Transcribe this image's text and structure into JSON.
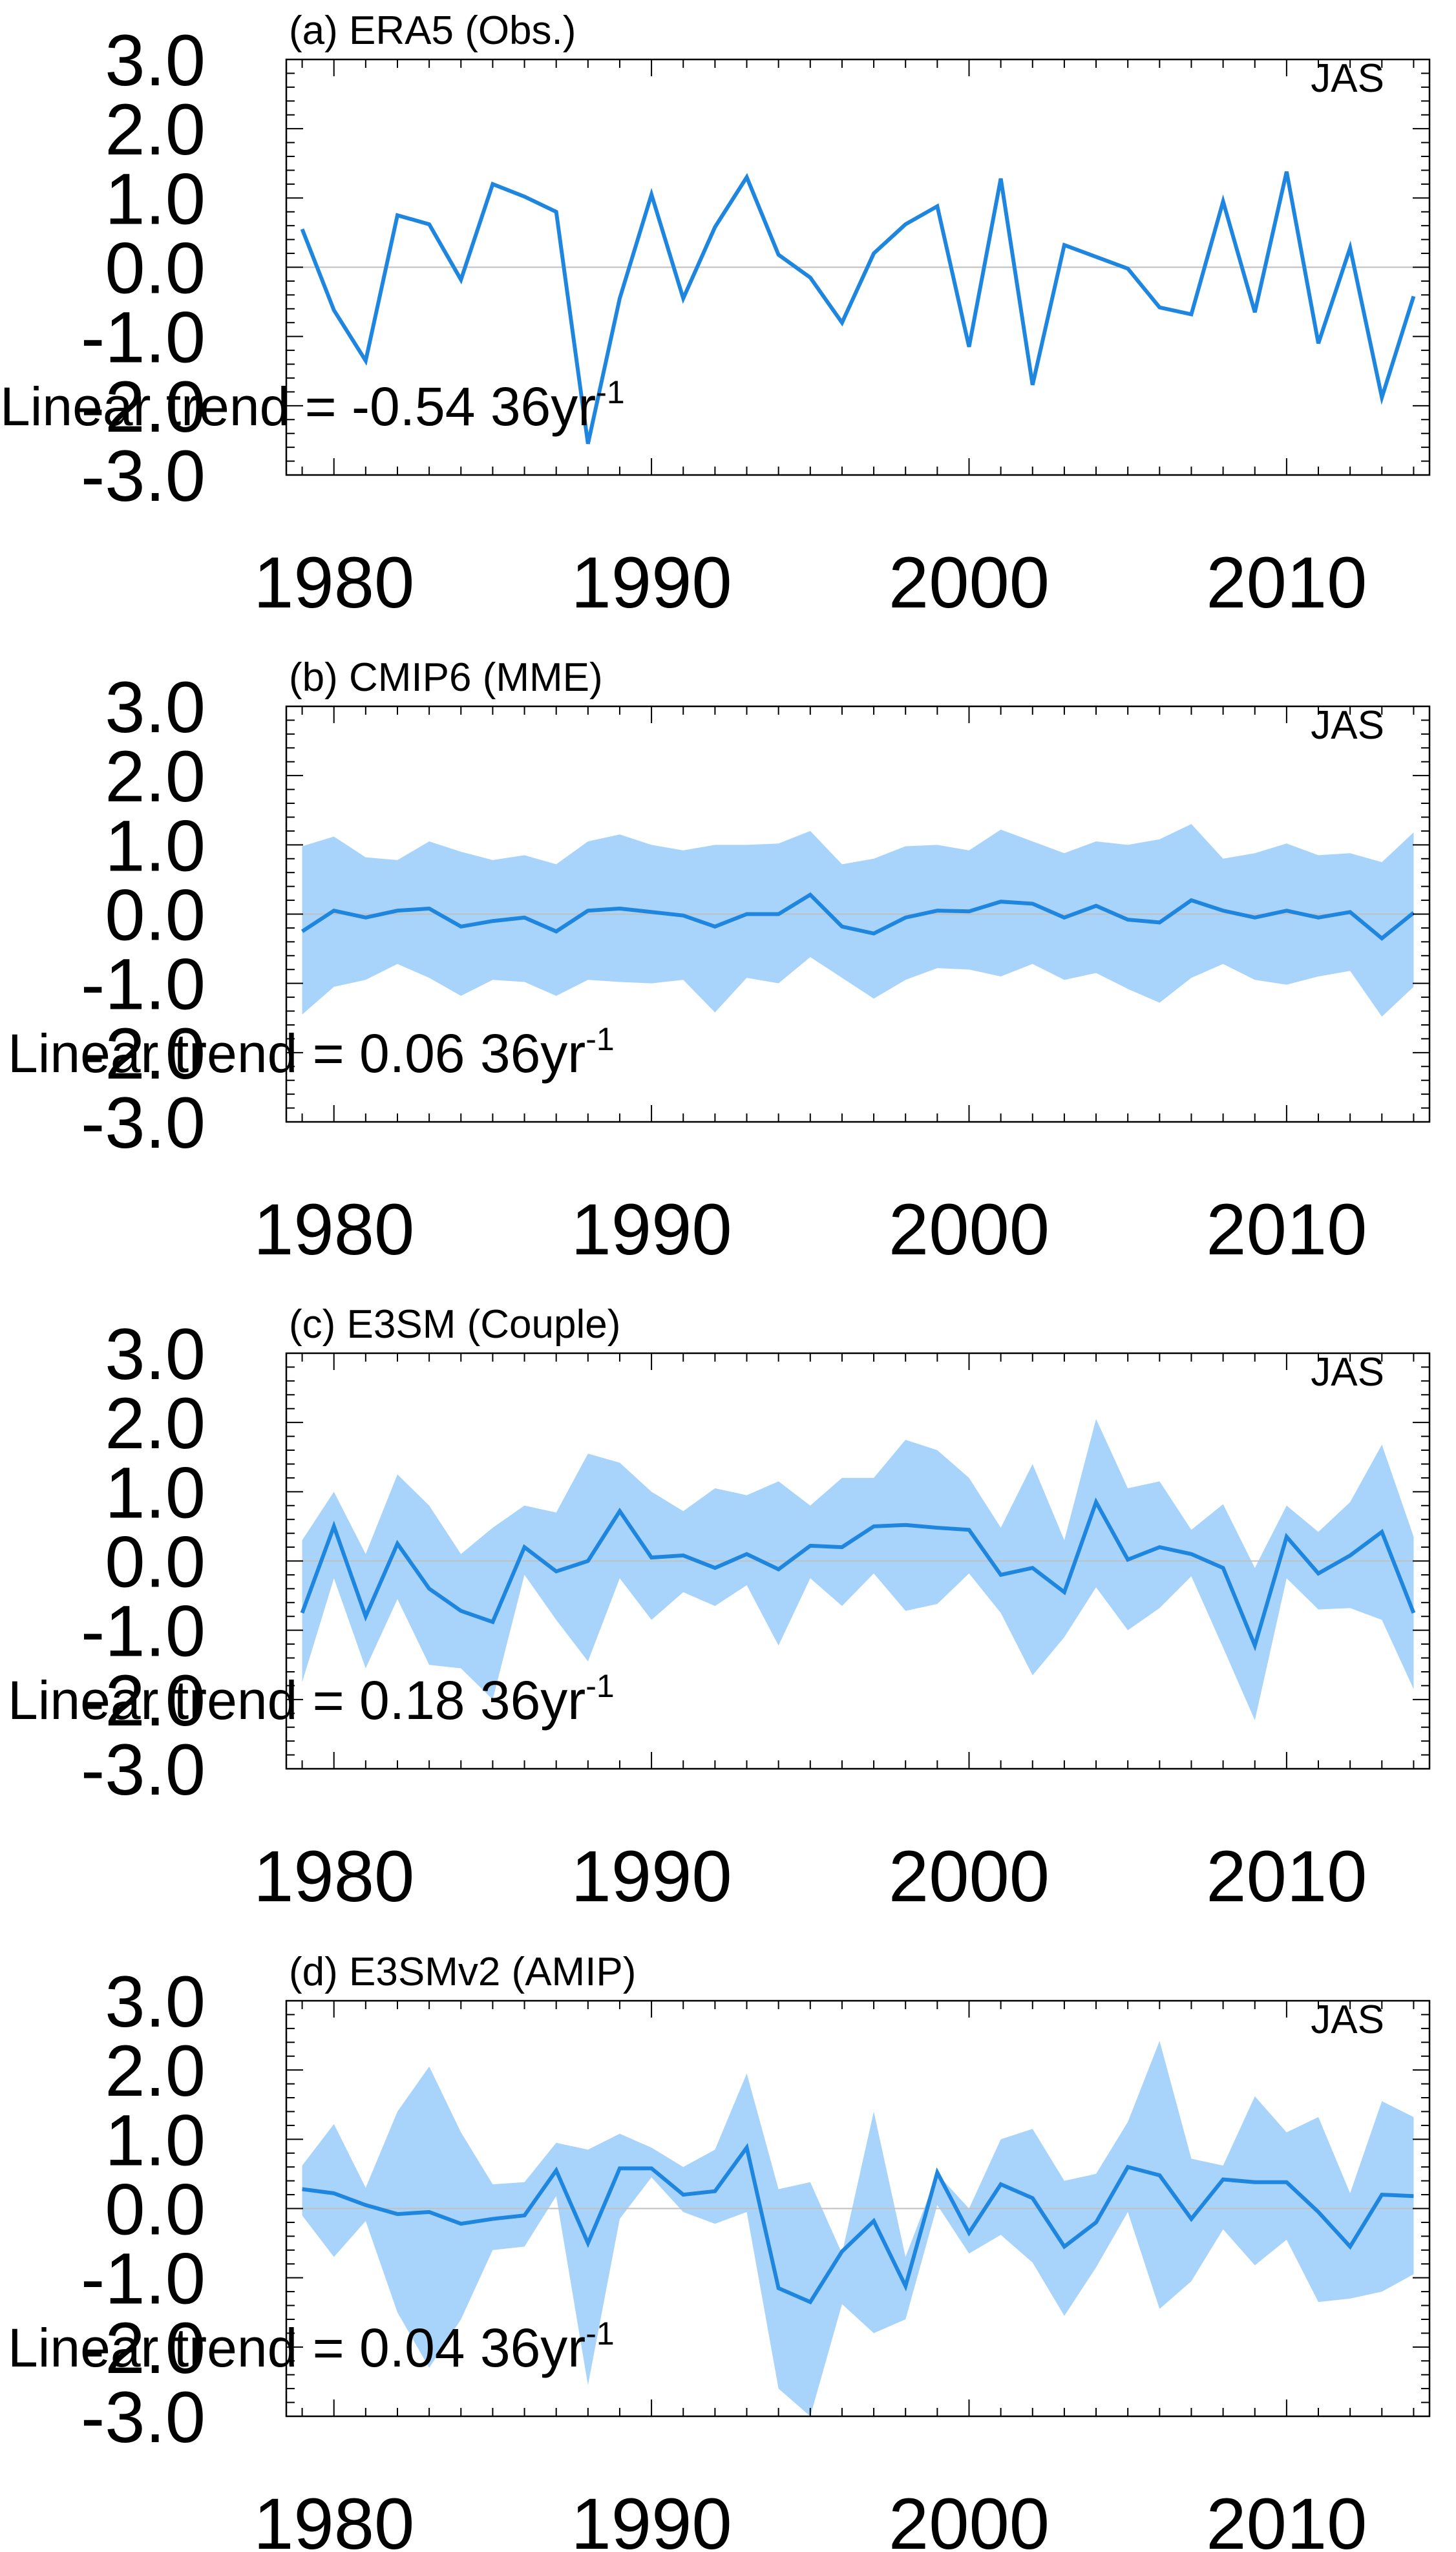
{
  "chart_data": [
    {
      "type": "line",
      "title": "(a) ERA5 (Obs.)",
      "season": "JAS",
      "trend_text": "Linear trend = -0.54 36yr",
      "trend_sup": "-1",
      "x": [
        1979,
        1980,
        1981,
        1982,
        1983,
        1984,
        1985,
        1986,
        1987,
        1988,
        1989,
        1990,
        1991,
        1992,
        1993,
        1994,
        1995,
        1996,
        1997,
        1998,
        1999,
        2000,
        2001,
        2002,
        2003,
        2004,
        2005,
        2006,
        2007,
        2008,
        2009,
        2010,
        2011,
        2012,
        2013,
        2014
      ],
      "xlim": [
        1978.5,
        2014.5
      ],
      "xticks": [
        1980,
        1990,
        2000,
        2010
      ],
      "xticklabels": [
        "1980",
        "1990",
        "2000",
        "2010"
      ],
      "ylim": [
        -3.0,
        3.0
      ],
      "yticks": [
        3.0,
        2.0,
        1.0,
        0.0,
        -1.0,
        -2.0,
        -3.0
      ],
      "yticklabels": [
        "3.0",
        "2.0",
        "1.0",
        "0.0",
        "-1.0",
        "-2.0",
        "-3.0"
      ],
      "series": [
        {
          "role": "line",
          "color": "#1f86e0",
          "values": [
            0.55,
            -0.62,
            -1.35,
            0.75,
            0.62,
            -0.18,
            1.2,
            1.02,
            0.8,
            -2.55,
            -0.45,
            1.05,
            -0.45,
            0.58,
            1.3,
            0.18,
            -0.15,
            -0.8,
            0.2,
            0.62,
            0.88,
            -1.15,
            1.28,
            -1.7,
            0.32,
            0.15,
            -0.02,
            -0.58,
            -0.68,
            0.95,
            -0.65,
            1.38,
            -1.1,
            0.28,
            -1.88,
            -0.42
          ]
        }
      ]
    },
    {
      "type": "line",
      "title": "(b) CMIP6 (MME)",
      "season": "JAS",
      "trend_text": "Linear trend = 0.06 36yr",
      "trend_sup": "-1",
      "x": [
        1979,
        1980,
        1981,
        1982,
        1983,
        1984,
        1985,
        1986,
        1987,
        1988,
        1989,
        1990,
        1991,
        1992,
        1993,
        1994,
        1995,
        1996,
        1997,
        1998,
        1999,
        2000,
        2001,
        2002,
        2003,
        2004,
        2005,
        2006,
        2007,
        2008,
        2009,
        2010,
        2011,
        2012,
        2013,
        2014
      ],
      "xlim": [
        1978.5,
        2014.5
      ],
      "xticks": [
        1980,
        1990,
        2000,
        2010
      ],
      "xticklabels": [
        "1980",
        "1990",
        "2000",
        "2010"
      ],
      "ylim": [
        -3.0,
        3.0
      ],
      "yticks": [
        3.0,
        2.0,
        1.0,
        0.0,
        -1.0,
        -2.0,
        -3.0
      ],
      "yticklabels": [
        "3.0",
        "2.0",
        "1.0",
        "0.0",
        "-1.0",
        "-2.0",
        "-3.0"
      ],
      "series": [
        {
          "role": "upper",
          "values": [
            0.98,
            1.12,
            0.82,
            0.78,
            1.05,
            0.9,
            0.78,
            0.85,
            0.72,
            1.05,
            1.15,
            1.0,
            0.92,
            1.0,
            1.0,
            1.02,
            1.2,
            0.72,
            0.8,
            0.98,
            1.0,
            0.92,
            1.22,
            1.05,
            0.88,
            1.05,
            1.0,
            1.08,
            1.3,
            0.8,
            0.88,
            1.02,
            0.85,
            0.88,
            0.75,
            1.18
          ]
        },
        {
          "role": "lower",
          "values": [
            -1.45,
            -1.05,
            -0.95,
            -0.72,
            -0.92,
            -1.18,
            -0.95,
            -0.98,
            -1.18,
            -0.95,
            -0.98,
            -1.0,
            -0.95,
            -1.42,
            -0.92,
            -1.0,
            -0.62,
            -0.92,
            -1.22,
            -0.95,
            -0.78,
            -0.8,
            -0.9,
            -0.72,
            -0.95,
            -0.85,
            -1.08,
            -1.28,
            -0.92,
            -0.72,
            -0.95,
            -1.02,
            -0.9,
            -0.82,
            -1.48,
            -1.05
          ]
        },
        {
          "role": "line",
          "color": "#1f86e0",
          "values": [
            -0.25,
            0.05,
            -0.05,
            0.05,
            0.08,
            -0.18,
            -0.1,
            -0.05,
            -0.25,
            0.05,
            0.08,
            0.03,
            -0.02,
            -0.18,
            0.0,
            0.0,
            0.28,
            -0.18,
            -0.28,
            -0.05,
            0.05,
            0.04,
            0.18,
            0.15,
            -0.05,
            0.12,
            -0.08,
            -0.12,
            0.2,
            0.05,
            -0.05,
            0.05,
            -0.05,
            0.03,
            -0.35,
            0.02
          ]
        }
      ]
    },
    {
      "type": "line",
      "title": "(c) E3SM (Couple)",
      "season": "JAS",
      "trend_text": "Linear trend = 0.18 36yr",
      "trend_sup": "-1",
      "x": [
        1979,
        1980,
        1981,
        1982,
        1983,
        1984,
        1985,
        1986,
        1987,
        1988,
        1989,
        1990,
        1991,
        1992,
        1993,
        1994,
        1995,
        1996,
        1997,
        1998,
        1999,
        2000,
        2001,
        2002,
        2003,
        2004,
        2005,
        2006,
        2007,
        2008,
        2009,
        2010,
        2011,
        2012,
        2013,
        2014
      ],
      "xlim": [
        1978.5,
        2014.5
      ],
      "xticks": [
        1980,
        1990,
        2000,
        2010
      ],
      "xticklabels": [
        "1980",
        "1990",
        "2000",
        "2010"
      ],
      "ylim": [
        -3.0,
        3.0
      ],
      "yticks": [
        3.0,
        2.0,
        1.0,
        0.0,
        -1.0,
        -2.0,
        -3.0
      ],
      "yticklabels": [
        "3.0",
        "2.0",
        "1.0",
        "0.0",
        "-1.0",
        "-2.0",
        "-3.0"
      ],
      "series": [
        {
          "role": "upper",
          "values": [
            0.3,
            1.0,
            0.1,
            1.25,
            0.8,
            0.1,
            0.48,
            0.8,
            0.7,
            1.55,
            1.42,
            1.0,
            0.72,
            1.05,
            0.95,
            1.15,
            0.8,
            1.2,
            1.2,
            1.75,
            1.6,
            1.2,
            0.48,
            1.4,
            0.3,
            2.05,
            1.05,
            1.15,
            0.45,
            0.82,
            -0.1,
            0.8,
            0.42,
            0.85,
            1.68,
            0.35
          ]
        },
        {
          "role": "lower",
          "values": [
            -1.75,
            -0.25,
            -1.55,
            -0.55,
            -1.5,
            -1.55,
            -2.0,
            -0.2,
            -0.85,
            -1.45,
            -0.25,
            -0.85,
            -0.45,
            -0.65,
            -0.35,
            -1.22,
            -0.25,
            -0.65,
            -0.18,
            -0.72,
            -0.62,
            -0.18,
            -0.75,
            -1.65,
            -1.1,
            -0.38,
            -1.0,
            -0.68,
            -0.22,
            -1.25,
            -2.3,
            -0.25,
            -0.7,
            -0.68,
            -0.85,
            -1.85
          ]
        },
        {
          "role": "line",
          "color": "#1f86e0",
          "values": [
            -0.75,
            0.5,
            -0.8,
            0.25,
            -0.4,
            -0.72,
            -0.88,
            0.2,
            -0.15,
            0.0,
            0.72,
            0.05,
            0.08,
            -0.1,
            0.1,
            -0.12,
            0.22,
            0.2,
            0.5,
            0.52,
            0.48,
            0.45,
            -0.2,
            -0.1,
            -0.45,
            0.85,
            0.02,
            0.2,
            0.1,
            -0.1,
            -1.22,
            0.35,
            -0.18,
            0.08,
            0.42,
            -0.75
          ]
        }
      ]
    },
    {
      "type": "line",
      "title": "(d) E3SMv2 (AMIP)",
      "season": "JAS",
      "trend_text": "Linear trend = 0.04 36yr",
      "trend_sup": "-1",
      "x": [
        1979,
        1980,
        1981,
        1982,
        1983,
        1984,
        1985,
        1986,
        1987,
        1988,
        1989,
        1990,
        1991,
        1992,
        1993,
        1994,
        1995,
        1996,
        1997,
        1998,
        1999,
        2000,
        2001,
        2002,
        2003,
        2004,
        2005,
        2006,
        2007,
        2008,
        2009,
        2010,
        2011,
        2012,
        2013,
        2014
      ],
      "xlim": [
        1978.5,
        2014.5
      ],
      "xticks": [
        1980,
        1990,
        2000,
        2010
      ],
      "xticklabels": [
        "1980",
        "1990",
        "2000",
        "2010"
      ],
      "ylim": [
        -3.0,
        3.0
      ],
      "yticks": [
        3.0,
        2.0,
        1.0,
        0.0,
        -1.0,
        -2.0,
        -3.0
      ],
      "yticklabels": [
        "3.0",
        "2.0",
        "1.0",
        "0.0",
        "-1.0",
        "-2.0",
        "-3.0"
      ],
      "series": [
        {
          "role": "upper",
          "values": [
            0.62,
            1.22,
            0.3,
            1.4,
            2.05,
            1.1,
            0.35,
            0.38,
            0.95,
            0.85,
            1.08,
            0.88,
            0.6,
            0.85,
            1.95,
            0.28,
            0.38,
            -0.65,
            1.4,
            -0.7,
            0.5,
            0.0,
            1.0,
            1.15,
            0.4,
            0.5,
            1.25,
            2.42,
            0.72,
            0.62,
            1.62,
            1.1,
            1.32,
            0.22,
            1.55,
            1.32
          ]
        },
        {
          "role": "lower",
          "values": [
            -0.1,
            -0.7,
            -0.18,
            -1.5,
            -2.3,
            -1.6,
            -0.6,
            -0.55,
            0.18,
            -2.55,
            -0.15,
            0.45,
            -0.05,
            -0.22,
            -0.05,
            -2.6,
            -3.0,
            -1.38,
            -1.8,
            -1.6,
            0.05,
            -0.65,
            -0.38,
            -0.78,
            -1.55,
            -0.85,
            -0.05,
            -1.45,
            -1.05,
            -0.3,
            -0.82,
            -0.45,
            -1.35,
            -1.3,
            -1.2,
            -0.95
          ]
        },
        {
          "role": "line",
          "color": "#1f86e0",
          "values": [
            0.28,
            0.22,
            0.05,
            -0.08,
            -0.05,
            -0.22,
            -0.15,
            -0.1,
            0.55,
            -0.5,
            0.58,
            0.58,
            0.2,
            0.25,
            0.88,
            -1.15,
            -1.35,
            -0.62,
            -0.18,
            -1.12,
            0.52,
            -0.35,
            0.35,
            0.15,
            -0.55,
            -0.2,
            0.6,
            0.48,
            -0.15,
            0.42,
            0.38,
            0.38,
            -0.05,
            -0.55,
            0.2,
            0.18
          ]
        }
      ]
    }
  ],
  "colors": {
    "line": "#1f86e0",
    "band": "#a8d4fb",
    "zero_line": "#bfbfbf",
    "axes": "#000000"
  }
}
